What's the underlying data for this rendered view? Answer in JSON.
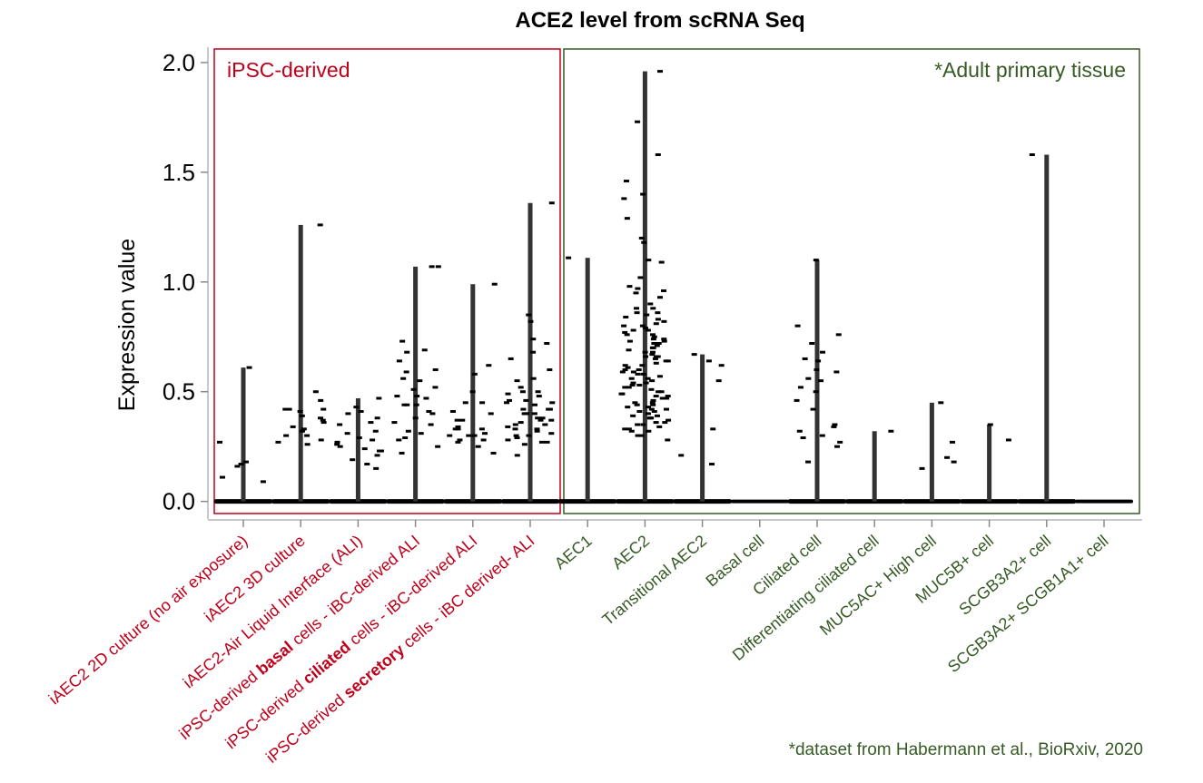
{
  "chart_data": {
    "type": "scatter",
    "title": "ACE2 level from scRNA Seq",
    "ylabel": "Expression  value",
    "xlabel": "",
    "ylim": [
      -0.08,
      2.07
    ],
    "yticks": [
      "0.0",
      "0.5",
      "1.0",
      "1.5",
      "2.0"
    ],
    "ytick_values": [
      0,
      0.5,
      1,
      1.5,
      2
    ],
    "grid": false,
    "groups": [
      {
        "label": "iPSC-derived",
        "color": "#c0001a",
        "categories": [
          0,
          1,
          2,
          3,
          4,
          5
        ]
      },
      {
        "label": "*Adult primary tissue",
        "color": "#375a25",
        "categories": [
          6,
          7,
          8,
          9,
          10,
          11,
          12,
          13,
          14,
          15
        ]
      }
    ],
    "categories": [
      {
        "label": [
          "iAEC2 2D culture (no air exposure)"
        ],
        "color": "#c0001a",
        "max": 0.61,
        "points": [
          0.27,
          0.09,
          0.11,
          0.18,
          0.16,
          0.17,
          0.61
        ]
      },
      {
        "label": [
          "iAEC2 3D culture"
        ],
        "color": "#c0001a",
        "max": 1.26,
        "points": [
          0.46,
          0.42,
          0.38,
          0.33,
          0.3,
          0.27,
          0.5,
          0.42,
          0.37,
          0.32,
          0.28,
          0.41,
          0.36,
          0.3,
          0.26,
          0.42,
          0.39,
          0.34,
          1.26
        ]
      },
      {
        "label": [
          "iAEC2-Air Liquid Interface (ALI)"
        ],
        "color": "#c0001a",
        "max": 0.47,
        "points": [
          0.47,
          0.43,
          0.41,
          0.38,
          0.35,
          0.32,
          0.29,
          0.27,
          0.25,
          0.23,
          0.21,
          0.19,
          0.17,
          0.4,
          0.36,
          0.31,
          0.26,
          0.23,
          0.15,
          0.28,
          0.24
        ]
      },
      {
        "label": [
          "iPSC-derived ",
          {
            "b": "basal"
          },
          " cells - iBC-derived ALI"
        ],
        "color": "#c0001a",
        "max": 1.07,
        "points": [
          1.07,
          0.73,
          0.68,
          0.59,
          0.55,
          0.51,
          0.47,
          0.44,
          0.41,
          0.38,
          0.35,
          0.31,
          0.28,
          0.22,
          1.07,
          0.69,
          0.64,
          0.6,
          0.56,
          0.52,
          0.48,
          0.44,
          0.4,
          0.36,
          0.32,
          0.29,
          0.25,
          0.48,
          0.44
        ]
      },
      {
        "label": [
          "iPSC-derived ",
          {
            "b": "ciliated"
          },
          " cells - iBC-derived ALI"
        ],
        "color": "#c0001a",
        "max": 0.99,
        "points": [
          0.34,
          0.31,
          0.28,
          0.27,
          0.3,
          0.33,
          0.37,
          0.41,
          0.45,
          0.3,
          0.28,
          0.99,
          0.5,
          0.45,
          0.4,
          0.37,
          0.33,
          0.3,
          0.25,
          0.22,
          0.62,
          0.58,
          0.33
        ]
      },
      {
        "label": [
          "iPSC-derived ",
          {
            "b": "secretory"
          },
          " cells - iBC derived- ALI"
        ],
        "color": "#c0001a",
        "max": 1.36,
        "points": [
          1.36,
          0.74,
          0.68,
          0.5,
          0.46,
          0.44,
          0.42,
          0.4,
          0.38,
          0.35,
          0.33,
          0.3,
          0.28,
          0.26,
          0.21,
          0.82,
          0.72,
          0.6,
          0.56,
          0.52,
          0.48,
          0.45,
          0.42,
          0.4,
          0.38,
          0.36,
          0.34,
          0.31,
          0.29,
          0.27,
          0.65,
          0.55,
          0.5,
          0.45,
          0.4,
          0.37,
          0.33,
          0.3,
          0.27,
          0.85,
          0.49,
          0.46,
          0.42,
          0.4,
          0.37,
          0.35,
          0.32
        ]
      },
      {
        "label": [
          "AEC1"
        ],
        "color": "#375a25",
        "max": 1.11,
        "points": [
          1.11
        ]
      },
      {
        "label": [
          "AEC2"
        ],
        "color": "#375a25",
        "max": 1.96,
        "points": [
          1.96,
          1.73,
          1.58,
          1.46,
          1.4,
          1.38,
          1.29,
          1.2,
          1.18,
          1.1,
          1.09,
          1.02,
          0.98,
          0.97,
          0.96,
          0.95,
          0.93,
          0.9,
          0.88,
          0.86,
          0.85,
          0.83,
          0.82,
          0.8,
          0.79,
          0.78,
          0.77,
          0.76,
          0.75,
          0.74,
          0.73,
          0.72,
          0.71,
          0.7,
          0.69,
          0.68,
          0.67,
          0.66,
          0.65,
          0.64,
          0.63,
          0.62,
          0.61,
          0.6,
          0.59,
          0.58,
          0.57,
          0.56,
          0.55,
          0.54,
          0.53,
          0.52,
          0.51,
          0.5,
          0.49,
          0.48,
          0.47,
          0.46,
          0.45,
          0.44,
          0.43,
          0.42,
          0.41,
          0.4,
          0.39,
          0.38,
          0.37,
          0.36,
          0.35,
          0.34,
          0.33,
          0.32,
          0.3,
          0.28,
          0.86,
          0.84,
          0.81,
          0.78,
          0.74,
          0.7,
          0.66,
          0.62,
          0.58,
          0.54,
          0.5,
          0.47,
          0.44,
          0.41,
          0.38,
          0.35,
          0.32,
          0.76,
          0.72,
          0.68,
          0.64,
          0.6,
          0.56,
          0.52,
          0.49,
          0.45,
          0.42,
          0.39,
          0.36,
          0.33,
          0.3,
          0.88,
          0.8,
          0.73,
          0.66,
          0.59,
          0.53,
          0.48,
          0.43,
          0.38
        ]
      },
      {
        "label": [
          "Transitional AEC2"
        ],
        "color": "#375a25",
        "max": 0.67,
        "points": [
          0.67,
          0.21,
          0.64,
          0.62,
          0.55,
          0.17,
          0.33
        ]
      },
      {
        "label": [
          "Basal cell"
        ],
        "color": "#375a25",
        "max": 0.0,
        "points": []
      },
      {
        "label": [
          "Ciliated cell"
        ],
        "color": "#375a25",
        "max": 1.1,
        "points": [
          1.1,
          0.8,
          0.76,
          0.72,
          0.68,
          0.65,
          0.6,
          0.56,
          0.52,
          0.5,
          0.46,
          0.42,
          0.34,
          0.29,
          0.27,
          0.25,
          0.18,
          0.64,
          0.59,
          0.55,
          0.35,
          0.32,
          0.3
        ]
      },
      {
        "label": [
          "Differentiating ciliated cell"
        ],
        "color": "#375a25",
        "max": 0.32,
        "points": [
          0.32
        ]
      },
      {
        "label": [
          "MUC5AC+ High cell"
        ],
        "color": "#375a25",
        "max": 0.45,
        "points": [
          0.45,
          0.27,
          0.2,
          0.18,
          0.15
        ]
      },
      {
        "label": [
          "MUC5B+ cell"
        ],
        "color": "#375a25",
        "max": 0.35,
        "points": [
          0.35,
          0.28
        ]
      },
      {
        "label": [
          "SCGB3A2+ cell"
        ],
        "color": "#375a25",
        "max": 1.58,
        "points": [
          1.58
        ]
      },
      {
        "label": [
          "SCGB3A2+ SCGB1A1+ cell"
        ],
        "color": "#375a25",
        "max": 0.0,
        "points": []
      }
    ],
    "annotations": [
      "*dataset from Habermann et al., BioRxiv,  2020"
    ]
  }
}
